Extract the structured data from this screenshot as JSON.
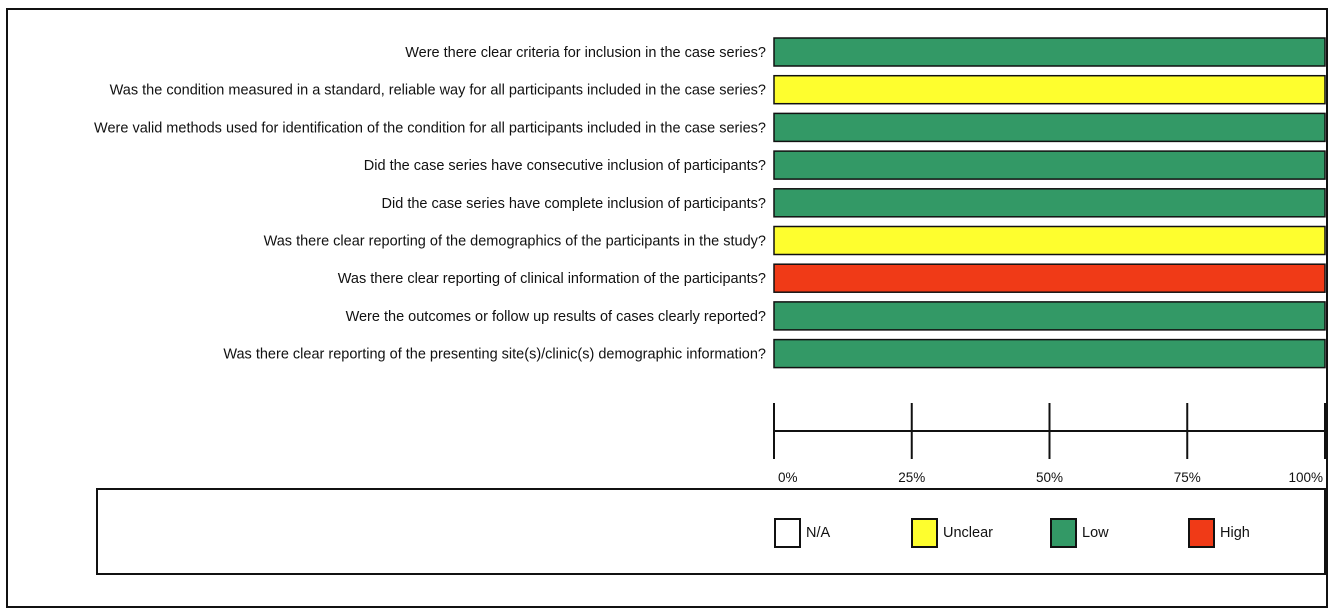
{
  "chart_data": {
    "type": "bar",
    "orientation": "horizontal",
    "stacked": true,
    "categories": [
      "Were there clear criteria for inclusion in the case series?",
      "Was the condition measured in a standard, reliable way for all participants included in the case series?",
      "Were valid methods used for identification of the condition for all participants included in the case series?",
      "Did the case series have consecutive inclusion of participants?",
      "Did the case series have complete inclusion of participants?",
      "Was there clear reporting of the demographics of the participants in the study?",
      "Was there clear reporting of clinical information of the participants?",
      "Were the outcomes or follow up results of cases clearly reported?",
      "Was there clear reporting of the presenting site(s)/clinic(s) demographic information?"
    ],
    "series": [
      {
        "name": "N/A",
        "color": "#ffffff",
        "values": [
          0,
          0,
          0,
          0,
          0,
          0,
          0,
          0,
          0
        ]
      },
      {
        "name": "Unclear",
        "color": "#fefe2e",
        "values": [
          0,
          100,
          0,
          0,
          0,
          100,
          0,
          0,
          0
        ]
      },
      {
        "name": "Low",
        "color": "#339966",
        "values": [
          100,
          0,
          100,
          100,
          100,
          0,
          0,
          100,
          100
        ]
      },
      {
        "name": "High",
        "color": "#f03a17",
        "values": [
          0,
          0,
          0,
          0,
          0,
          0,
          100,
          0,
          0
        ]
      }
    ],
    "xlim": [
      0,
      100
    ],
    "xticks": [
      "0%",
      "25%",
      "50%",
      "75%",
      "100%"
    ],
    "legend_placement": "bottom",
    "grid": false
  },
  "legend": {
    "items": [
      {
        "label": "N/A",
        "color": "#ffffff"
      },
      {
        "label": "Unclear",
        "color": "#fefe2e"
      },
      {
        "label": "Low",
        "color": "#339966"
      },
      {
        "label": "High",
        "color": "#f03a17"
      }
    ]
  }
}
